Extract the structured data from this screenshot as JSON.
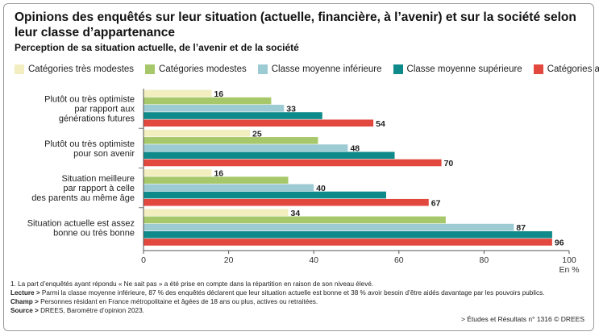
{
  "title": "Opinions des enquêtés sur leur situation (actuelle, financière, à l’avenir) et sur la société selon leur classe d’appartenance",
  "subtitle": "Perception de sa situation actuelle, de l’avenir et de la société",
  "notes": {
    "note1": "1. La part d’enquêtés ayant répondu « Ne sait pas » a été prise en compte dans la répartition en raison de son niveau élevé.",
    "lecture_label": "Lecture >",
    "lecture_text": " Parmi la classe moyenne inférieure, 87 % des enquêtés déclarent que leur situation actuelle est bonne et 38 % avoir besoin d’être aidés davantage par les pouvoirs publics.",
    "champ_label": "Champ >",
    "champ_text": " Personnes résidant en France métropolitaine et âgées de 18 ans ou plus, actives ou retraitées.",
    "source_label": "Source >",
    "source_text": " DREES, Baromètre d’opinion 2023.",
    "reference": "> Études et Résultats n° 1316 © DREES"
  },
  "chart_data": {
    "type": "bar",
    "orientation": "horizontal",
    "categories": [
      [
        "Plutôt ou très optimiste",
        "par rapport aux",
        "générations futures"
      ],
      [
        "Plutôt ou très optimiste",
        "pour son avenir"
      ],
      [
        "Situation meilleure",
        "par rapport à celle",
        "des parents au même âge"
      ],
      [
        "Situation actuelle est assez",
        "bonne ou très bonne"
      ]
    ],
    "series": [
      {
        "name": "Catégories très modestes",
        "color": "#f2eec0",
        "values": [
          16,
          25,
          16,
          34
        ]
      },
      {
        "name": "Catégories modestes",
        "color": "#a6c86a",
        "values": [
          30,
          41,
          34,
          71
        ]
      },
      {
        "name": "Classe moyenne inférieure",
        "color": "#9ccbd3",
        "values": [
          33,
          48,
          40,
          87
        ]
      },
      {
        "name": "Classe moyenne supérieure",
        "color": "#0e8a8a",
        "values": [
          42,
          59,
          57,
          96
        ]
      },
      {
        "name": "Catégories aisées",
        "color": "#e2483d",
        "values": [
          54,
          70,
          67,
          96
        ]
      }
    ],
    "data_labels": [
      {
        "series": 0,
        "values": [
          "16",
          "25",
          "16",
          "34"
        ]
      },
      {
        "series": 2,
        "values": [
          "33",
          "48",
          "40",
          "87"
        ]
      },
      {
        "series": 4,
        "values": [
          "54",
          "70",
          "67",
          "96"
        ]
      }
    ],
    "xlim": [
      0,
      100
    ],
    "xticks": [
      "0",
      "20",
      "40",
      "60",
      "80",
      "100"
    ],
    "xunit": "En %",
    "grid": false,
    "legend_position": "top"
  }
}
